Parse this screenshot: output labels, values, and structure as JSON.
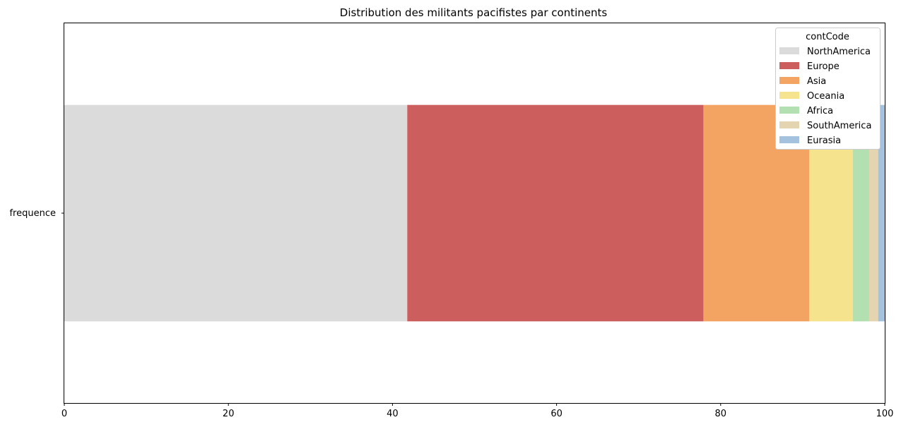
{
  "chart_data": {
    "type": "bar",
    "orientation": "horizontal-stacked",
    "title": "Distribution des militants pacifistes par continents",
    "categories": [
      "frequence"
    ],
    "series": [
      {
        "name": "NorthAmerica",
        "values": [
          41.8
        ],
        "color": "#dbdbdb"
      },
      {
        "name": "Europe",
        "values": [
          36.1
        ],
        "color": "#cd5e5e"
      },
      {
        "name": "Asia",
        "values": [
          12.9
        ],
        "color": "#f3a463"
      },
      {
        "name": "Oceania",
        "values": [
          5.3
        ],
        "color": "#f5e48d"
      },
      {
        "name": "Africa",
        "values": [
          2.0
        ],
        "color": "#b2e0b0"
      },
      {
        "name": "SouthAmerica",
        "values": [
          1.1
        ],
        "color": "#e4d5b0"
      },
      {
        "name": "Eurasia",
        "values": [
          0.8
        ],
        "color": "#a4c2dd"
      }
    ],
    "xlim": [
      0,
      100
    ],
    "xticks": [
      "0",
      "20",
      "40",
      "60",
      "80",
      "100"
    ],
    "xlabel": "",
    "ylabel": "",
    "legend": {
      "title": "contCode",
      "placement": "top-right"
    },
    "grid": false
  }
}
